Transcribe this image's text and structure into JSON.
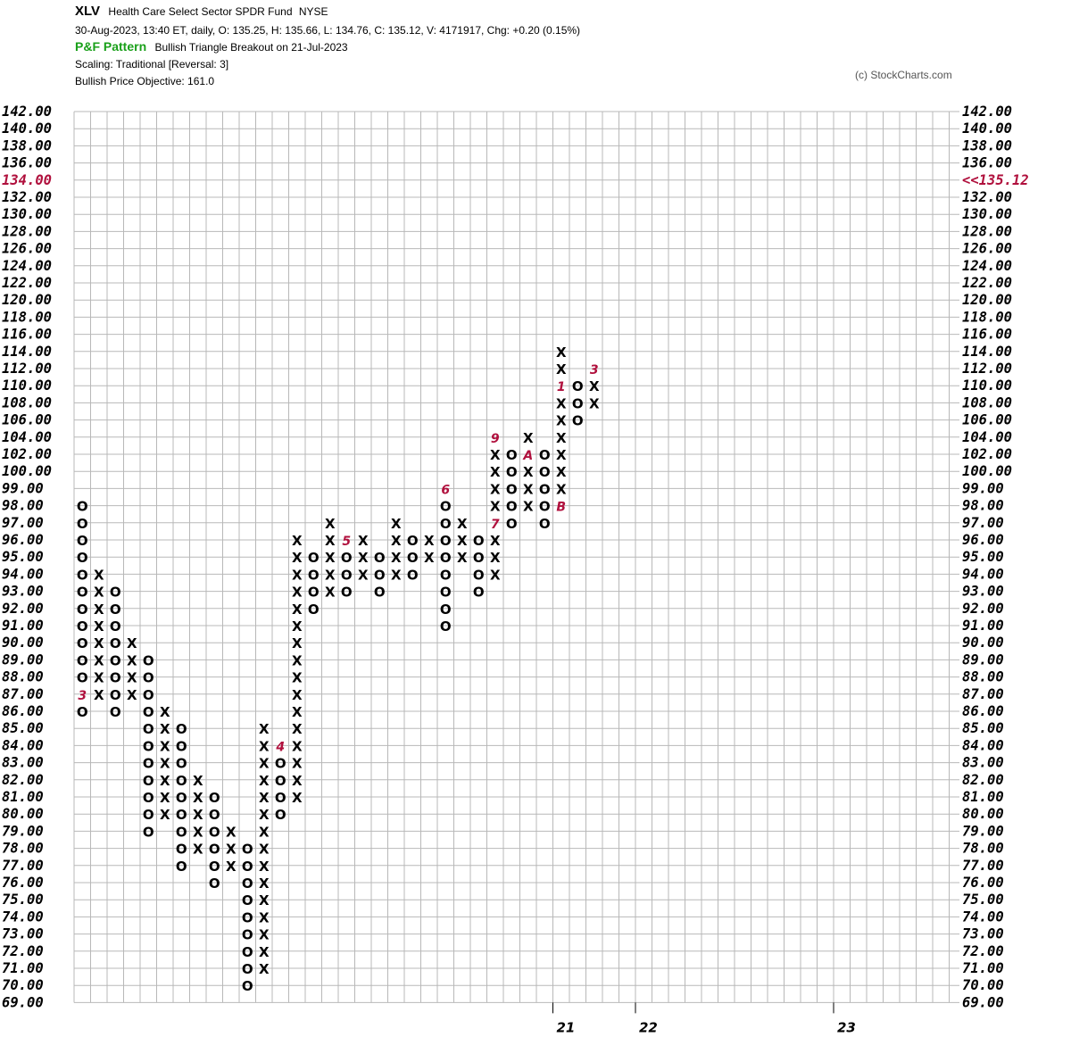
{
  "header": {
    "ticker": "XLV",
    "name": "Health Care Select Sector SPDR Fund",
    "exchange": "NYSE",
    "quote_line": "30-Aug-2023, 13:40 ET, daily, O: 135.25, H: 135.66, L: 134.76, C: 135.12, V: 4171917, Chg: +0.20 (0.15%)",
    "pattern_label": "P&F Pattern",
    "pattern_text": "Bullish Triangle Breakout on 21-Jul-2023",
    "scaling": "Scaling: Traditional [Reversal: 3]",
    "objective": "Bullish Price Objective: 161.0",
    "copyright": "(c) StockCharts.com"
  },
  "colors": {
    "grid": "#b8b8b8",
    "symbol": "#000000",
    "month": "#b0103d",
    "pattern": "#1aa01a",
    "highlight": "#b0103d"
  },
  "chart_data": {
    "type": "point-and-figure",
    "y_levels": [
      "69.00",
      "70.00",
      "71.00",
      "72.00",
      "73.00",
      "74.00",
      "75.00",
      "76.00",
      "77.00",
      "78.00",
      "79.00",
      "80.00",
      "81.00",
      "82.00",
      "83.00",
      "84.00",
      "85.00",
      "86.00",
      "87.00",
      "88.00",
      "89.00",
      "90.00",
      "91.00",
      "92.00",
      "93.00",
      "94.00",
      "95.00",
      "96.00",
      "97.00",
      "98.00",
      "99.00",
      "100.00",
      "102.00",
      "104.00",
      "106.00",
      "108.00",
      "110.00",
      "112.00",
      "114.00",
      "116.00",
      "118.00",
      "120.00",
      "122.00",
      "124.00",
      "126.00",
      "128.00",
      "130.00",
      "132.00",
      "134.00",
      "136.00",
      "138.00",
      "140.00",
      "142.00"
    ],
    "highlight_level": "134.00",
    "last_price_label": "<<135.12",
    "x_labels": [
      {
        "col": 29,
        "label": "21"
      },
      {
        "col": 34,
        "label": "22"
      },
      {
        "col": 46,
        "label": "23"
      }
    ],
    "columns": [
      {
        "type": "O",
        "high": "98.00",
        "low": "86.00",
        "marks": {
          "87.00": "3"
        }
      },
      {
        "type": "X",
        "high": "94.00",
        "low": "87.00"
      },
      {
        "type": "O",
        "high": "93.00",
        "low": "86.00"
      },
      {
        "type": "X",
        "high": "90.00",
        "low": "87.00"
      },
      {
        "type": "O",
        "high": "89.00",
        "low": "79.00"
      },
      {
        "type": "X",
        "high": "86.00",
        "low": "80.00"
      },
      {
        "type": "O",
        "high": "85.00",
        "low": "77.00"
      },
      {
        "type": "X",
        "high": "82.00",
        "low": "78.00"
      },
      {
        "type": "O",
        "high": "81.00",
        "low": "76.00"
      },
      {
        "type": "X",
        "high": "79.00",
        "low": "77.00"
      },
      {
        "type": "O",
        "high": "78.00",
        "low": "70.00"
      },
      {
        "type": "X",
        "high": "85.00",
        "low": "71.00"
      },
      {
        "type": "O",
        "high": "84.00",
        "low": "80.00",
        "marks": {
          "84.00": "4"
        }
      },
      {
        "type": "X",
        "high": "96.00",
        "low": "81.00"
      },
      {
        "type": "O",
        "high": "95.00",
        "low": "92.00"
      },
      {
        "type": "X",
        "high": "97.00",
        "low": "93.00"
      },
      {
        "type": "O",
        "high": "96.00",
        "low": "93.00",
        "marks": {
          "96.00": "5"
        }
      },
      {
        "type": "X",
        "high": "96.00",
        "low": "94.00"
      },
      {
        "type": "O",
        "high": "95.00",
        "low": "93.00"
      },
      {
        "type": "X",
        "high": "97.00",
        "low": "94.00"
      },
      {
        "type": "O",
        "high": "96.00",
        "low": "94.00"
      },
      {
        "type": "X",
        "high": "96.00",
        "low": "95.00"
      },
      {
        "type": "O",
        "high": "98.00",
        "low": "91.00",
        "marks": {
          "99.00": "6"
        }
      },
      {
        "type": "X",
        "high": "97.00",
        "low": "95.00",
        "fix": "X"
      },
      {
        "type": "O",
        "high": "96.00",
        "low": "93.00"
      },
      {
        "type": "X",
        "high": "102.00",
        "low": "94.00",
        "marks": {
          "97.00": "7",
          "104.00": "9"
        }
      },
      {
        "type": "O",
        "high": "102.00",
        "low": "97.00"
      },
      {
        "type": "X",
        "high": "104.00",
        "low": "98.00",
        "marks": {
          "102.00": "A"
        }
      },
      {
        "type": "O",
        "high": "102.00",
        "low": "97.00"
      },
      {
        "type": "X",
        "high": "114.00",
        "low": "98.00",
        "marks": {
          "98.00": "B",
          "110.00": "1"
        }
      },
      {
        "type": "O",
        "high": "110.00",
        "low": "106.00"
      },
      {
        "type": "X",
        "high": "112.00",
        "low": "108.00",
        "marks": {
          "112.00": "3"
        }
      },
      {
        "type": "O",
        "high": "0",
        "low": "0"
      },
      {
        "type": "O",
        "high": "0",
        "low": "0"
      }
    ],
    "grid": "on"
  }
}
